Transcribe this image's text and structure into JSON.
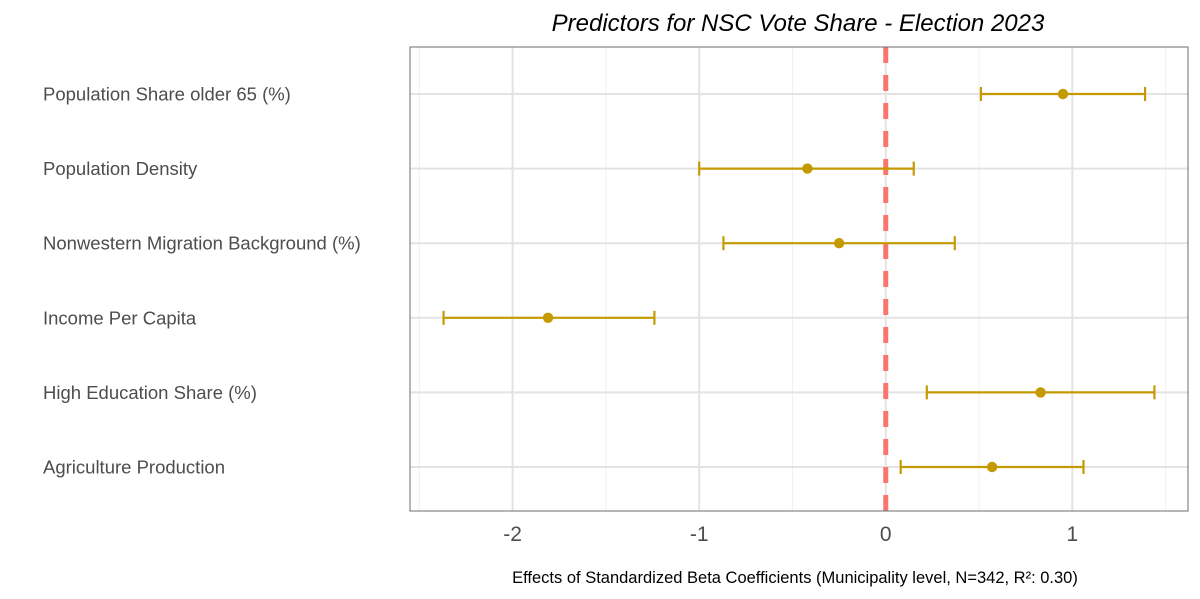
{
  "chart_data": {
    "type": "scatter",
    "subtype": "coefficient-plot-with-error-bars",
    "title": "Predictors for NSC Vote Share - Election 2023",
    "xlabel": "Effects of Standardized Beta Coefficients (Municipality level, N=342, R²: 0.30)",
    "ylabel": "",
    "xlim": [
      -2.55,
      1.62
    ],
    "xticks": [
      -2,
      -1,
      0,
      1
    ],
    "xtick_labels": [
      "-2",
      "-1",
      "0",
      "1"
    ],
    "grid": true,
    "reference_line": {
      "x": 0,
      "style": "dashed",
      "color": "#F8766D"
    },
    "point_color": "#C49A00",
    "categories": [
      "Population Share older 65 (%)",
      "Population Density",
      "Nonwestern Migration Background (%)",
      "Income Per Capita",
      "High Education Share (%)",
      "Agriculture Production"
    ],
    "estimates": [
      0.95,
      -0.42,
      -0.25,
      -1.81,
      0.83,
      0.57
    ],
    "ci_low": [
      0.51,
      -1.0,
      -0.87,
      -2.37,
      0.22,
      0.08
    ],
    "ci_high": [
      1.39,
      0.15,
      0.37,
      -1.24,
      1.44,
      1.06
    ]
  }
}
